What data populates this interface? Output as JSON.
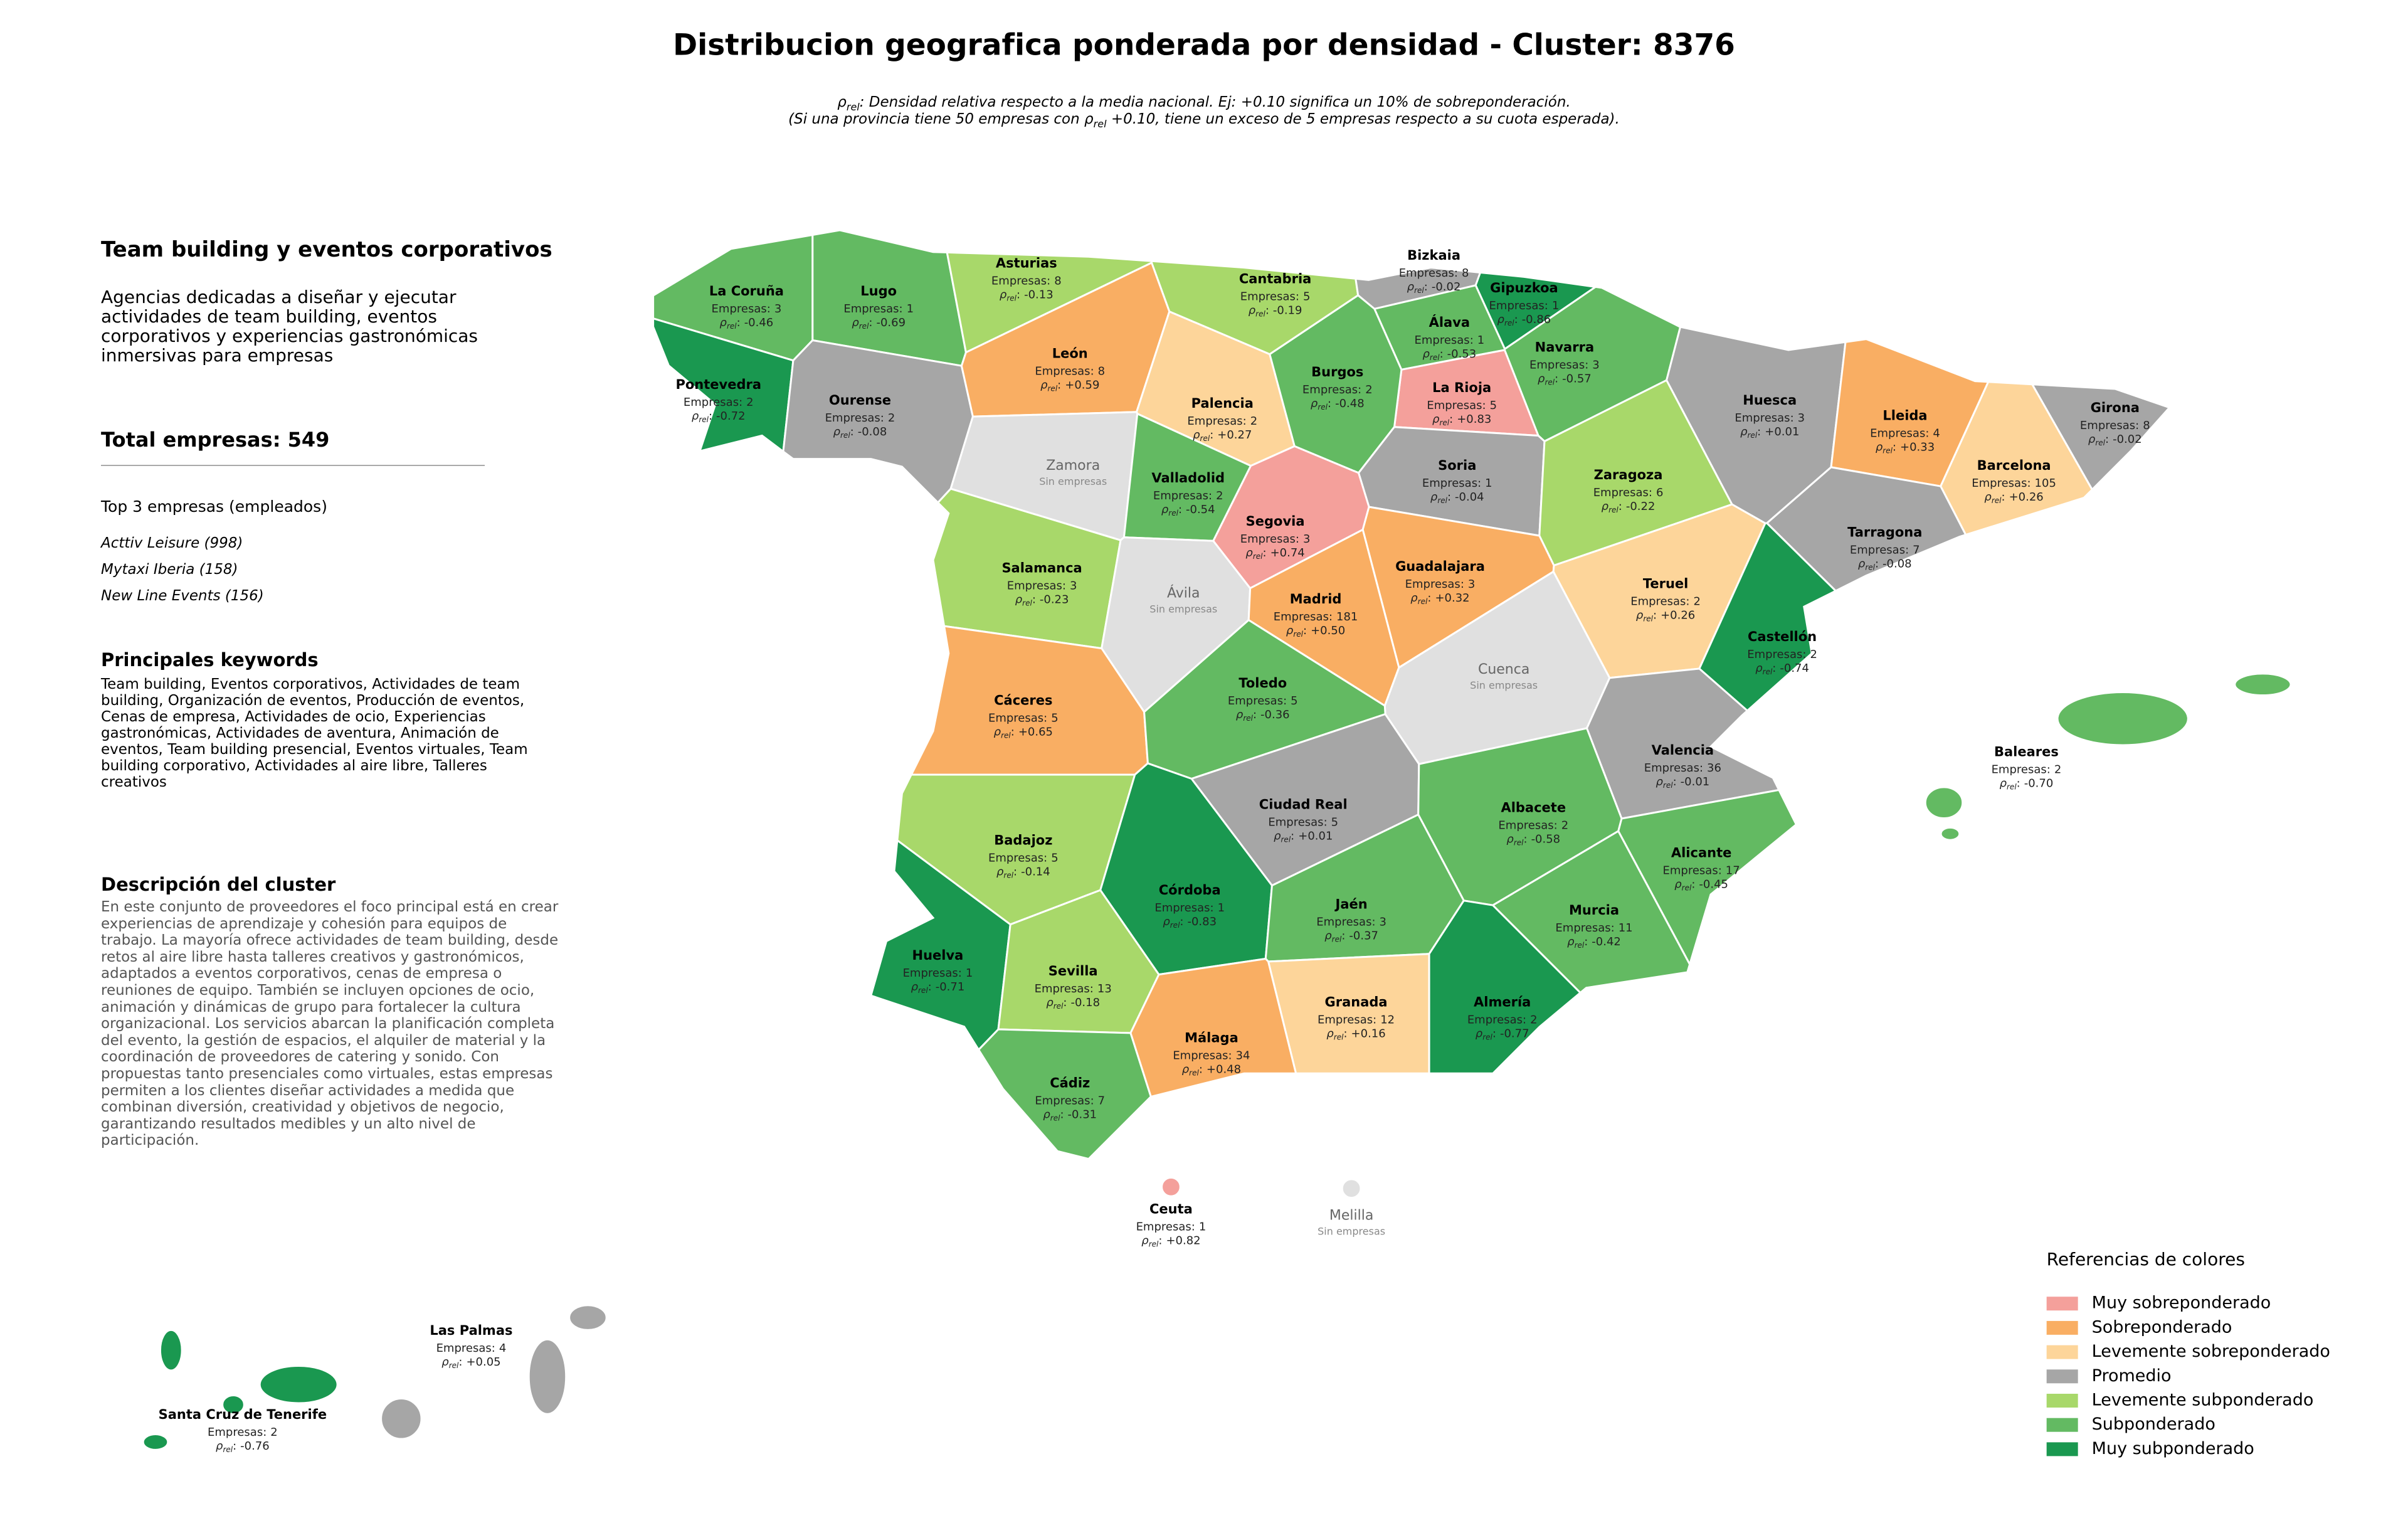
{
  "header": {
    "title": "Distribucion geografica ponderada por densidad - Cluster: 8376",
    "subtitle": [
      [
        {
          "sym": "ρ"
        },
        {
          "sub": "rel"
        },
        {
          "text": ": Densidad relativa respecto a la media nacional. Ej: +0.10 significa un 10% de sobreponderación."
        }
      ],
      [
        {
          "text": "(Si una provincia tiene 50 empresas con "
        },
        {
          "sym": "ρ"
        },
        {
          "sub": "rel"
        },
        {
          "text": " +0.10, tiene un exceso de 5 empresas respecto a su cuota esperada)."
        }
      ]
    ]
  },
  "panel": {
    "heading": "Team building y eventos corporativos",
    "description": "Agencias dedicadas a diseñar y ejecutar actividades de team building, eventos corporativos y experiencias gastronómicas inmersivas para empresas",
    "total_label": "Total empresas:",
    "total": 549,
    "top_heading": "Top 3 empresas (empleados)",
    "top": [
      "Acttiv Leisure (998)",
      "Mytaxi Iberia (158)",
      "New Line Events (156)"
    ],
    "keywords_heading": "Principales keywords",
    "keywords": "Team building, Eventos corporativos, Actividades de team building, Organización de eventos, Producción de eventos, Cenas de empresa, Actividades de ocio, Experiencias gastronómicas, Actividades de aventura, Animación de eventos, Team building presencial, Eventos virtuales, Team building corporativo, Actividades al aire libre, Talleres creativos",
    "cluster_heading": "Descripción del cluster",
    "cluster_text": "En este conjunto de proveedores el foco principal está en crear experiencias de aprendizaje y cohesión para equipos de trabajo. La mayoría ofrece actividades de team building, desde retos al aire libre hasta talleres creativos y gastronómicos, adaptados a eventos corporativos, cenas de empresa o reuniones de equipo. También se incluyen opciones de ocio, animación y dinámicas de grupo para fortalecer la cultura organizacional. Los servicios abarcan la planificación completa del evento, la gestión de espacios, el alquiler de material y la coordinación de proveedores de catering y sonido. Con propuestas tanto presenciales como virtuales, estas empresas permiten a los clientes diseñar actividades a medida que combinan diversión, creatividad y objetivos de negocio, garantizando resultados medibles y un alto nivel de participación."
  },
  "map": {
    "companies_label": "Empresas",
    "separator": ":",
    "rho_symbol": "ρ",
    "rho_subscript": "rel",
    "provinces": [
      {
        "name": "La Coruña",
        "companies": 3,
        "rho": -0.46,
        "rho_label": "-0.46",
        "color": "#63ba62"
      },
      {
        "name": "Lugo",
        "companies": 1,
        "rho": -0.69,
        "rho_label": "-0.69",
        "color": "#63ba62"
      },
      {
        "name": "Asturias",
        "companies": 8,
        "rho": -0.13,
        "rho_label": "-0.13",
        "color": "#a8d86a"
      },
      {
        "name": "Cantabria",
        "companies": 5,
        "rho": -0.19,
        "rho_label": "-0.19",
        "color": "#a8d86a"
      },
      {
        "name": "Bizkaia",
        "companies": 8,
        "rho": -0.02,
        "rho_label": "-0.02",
        "color": "#a6a6a6"
      },
      {
        "name": "Gipuzkoa",
        "companies": 1,
        "rho": -0.86,
        "rho_label": "-0.86",
        "color": "#1a9850"
      },
      {
        "name": "Álava",
        "companies": 1,
        "rho": -0.53,
        "rho_label": "-0.53",
        "color": "#63ba62"
      },
      {
        "name": "Navarra",
        "companies": 3,
        "rho": -0.57,
        "rho_label": "-0.57",
        "color": "#63ba62"
      },
      {
        "name": "La Rioja",
        "companies": 5,
        "rho": 0.83,
        "rho_label": "+0.83",
        "color": "#f4a09b"
      },
      {
        "name": "Pontevedra",
        "companies": 2,
        "rho": -0.72,
        "rho_label": "-0.72",
        "color": "#1a9850"
      },
      {
        "name": "Ourense",
        "companies": 2,
        "rho": -0.08,
        "rho_label": "-0.08",
        "color": "#a6a6a6"
      },
      {
        "name": "León",
        "companies": 8,
        "rho": 0.59,
        "rho_label": "+0.59",
        "color": "#f9ae63"
      },
      {
        "name": "Palencia",
        "companies": 2,
        "rho": 0.27,
        "rho_label": "+0.27",
        "color": "#fdd59a"
      },
      {
        "name": "Burgos",
        "companies": 2,
        "rho": -0.48,
        "rho_label": "-0.48",
        "color": "#63ba62"
      },
      {
        "name": "Huesca",
        "companies": 3,
        "rho": 0.01,
        "rho_label": "+0.01",
        "color": "#a6a6a6"
      },
      {
        "name": "Lleida",
        "companies": 4,
        "rho": 0.33,
        "rho_label": "+0.33",
        "color": "#f9ae63"
      },
      {
        "name": "Girona",
        "companies": 8,
        "rho": -0.02,
        "rho_label": "-0.02",
        "color": "#a6a6a6"
      },
      {
        "name": "Barcelona",
        "companies": 105,
        "rho": 0.26,
        "rho_label": "+0.26",
        "color": "#fdd59a"
      },
      {
        "name": "Zamora",
        "note": "Sin empresas",
        "color": "#e0e0e0"
      },
      {
        "name": "Valladolid",
        "companies": 2,
        "rho": -0.54,
        "rho_label": "-0.54",
        "color": "#63ba62"
      },
      {
        "name": "Soria",
        "companies": 1,
        "rho": -0.04,
        "rho_label": "-0.04",
        "color": "#a6a6a6"
      },
      {
        "name": "Zaragoza",
        "companies": 6,
        "rho": -0.22,
        "rho_label": "-0.22",
        "color": "#a8d86a"
      },
      {
        "name": "Segovia",
        "companies": 3,
        "rho": 0.74,
        "rho_label": "+0.74",
        "color": "#f4a09b"
      },
      {
        "name": "Tarragona",
        "companies": 7,
        "rho": -0.08,
        "rho_label": "-0.08",
        "color": "#a6a6a6"
      },
      {
        "name": "Salamanca",
        "companies": 3,
        "rho": -0.23,
        "rho_label": "-0.23",
        "color": "#a8d86a"
      },
      {
        "name": "Ávila",
        "note": "Sin empresas",
        "color": "#e0e0e0"
      },
      {
        "name": "Guadalajara",
        "companies": 3,
        "rho": 0.32,
        "rho_label": "+0.32",
        "color": "#f9ae63"
      },
      {
        "name": "Madrid",
        "companies": 181,
        "rho": 0.5,
        "rho_label": "+0.50",
        "color": "#f9ae63"
      },
      {
        "name": "Teruel",
        "companies": 2,
        "rho": 0.26,
        "rho_label": "+0.26",
        "color": "#fdd59a"
      },
      {
        "name": "Castellón",
        "companies": 2,
        "rho": -0.74,
        "rho_label": "-0.74",
        "color": "#1a9850"
      },
      {
        "name": "Cuenca",
        "note": "Sin empresas",
        "color": "#e0e0e0"
      },
      {
        "name": "Cáceres",
        "companies": 5,
        "rho": 0.65,
        "rho_label": "+0.65",
        "color": "#f9ae63"
      },
      {
        "name": "Toledo",
        "companies": 5,
        "rho": -0.36,
        "rho_label": "-0.36",
        "color": "#63ba62"
      },
      {
        "name": "Valencia",
        "companies": 36,
        "rho": -0.01,
        "rho_label": "-0.01",
        "color": "#a6a6a6"
      },
      {
        "name": "Ciudad Real",
        "companies": 5,
        "rho": 0.01,
        "rho_label": "+0.01",
        "color": "#a6a6a6"
      },
      {
        "name": "Albacete",
        "companies": 2,
        "rho": -0.58,
        "rho_label": "-0.58",
        "color": "#63ba62"
      },
      {
        "name": "Badajoz",
        "companies": 5,
        "rho": -0.14,
        "rho_label": "-0.14",
        "color": "#a8d86a"
      },
      {
        "name": "Alicante",
        "companies": 17,
        "rho": -0.45,
        "rho_label": "-0.45",
        "color": "#63ba62"
      },
      {
        "name": "Córdoba",
        "companies": 1,
        "rho": -0.83,
        "rho_label": "-0.83",
        "color": "#1a9850"
      },
      {
        "name": "Jaén",
        "companies": 3,
        "rho": -0.37,
        "rho_label": "-0.37",
        "color": "#63ba62"
      },
      {
        "name": "Murcia",
        "companies": 11,
        "rho": -0.42,
        "rho_label": "-0.42",
        "color": "#63ba62"
      },
      {
        "name": "Huelva",
        "companies": 1,
        "rho": -0.71,
        "rho_label": "-0.71",
        "color": "#1a9850"
      },
      {
        "name": "Sevilla",
        "companies": 13,
        "rho": -0.18,
        "rho_label": "-0.18",
        "color": "#a8d86a"
      },
      {
        "name": "Granada",
        "companies": 12,
        "rho": 0.16,
        "rho_label": "+0.16",
        "color": "#fdd59a"
      },
      {
        "name": "Almería",
        "companies": 2,
        "rho": -0.77,
        "rho_label": "-0.77",
        "color": "#1a9850"
      },
      {
        "name": "Málaga",
        "companies": 34,
        "rho": 0.48,
        "rho_label": "+0.48",
        "color": "#f9ae63"
      },
      {
        "name": "Cádiz",
        "companies": 7,
        "rho": -0.31,
        "rho_label": "-0.31",
        "color": "#63ba62"
      },
      {
        "name": "Baleares",
        "companies": 2,
        "rho": -0.7,
        "rho_label": "-0.70",
        "color": "#63ba62"
      },
      {
        "name": "Ceuta",
        "companies": 1,
        "rho": 0.82,
        "rho_label": "+0.82",
        "color": "#f4a09b"
      },
      {
        "name": "Melilla",
        "note": "Sin empresas",
        "color": "#e0e0e0"
      },
      {
        "name": "Las Palmas",
        "companies": 4,
        "rho": 0.05,
        "rho_label": "+0.05",
        "color": "#a6a6a6"
      },
      {
        "name": "Santa Cruz de Tenerife",
        "companies": 2,
        "rho": -0.76,
        "rho_label": "-0.76",
        "color": "#1a9850"
      }
    ]
  },
  "legend": {
    "title": "Referencias de colores",
    "items": [
      {
        "name": "Muy sobreponderado",
        "color": "#f4a09b"
      },
      {
        "name": "Sobreponderado",
        "color": "#f9ae63"
      },
      {
        "name": "Levemente sobreponderado",
        "color": "#fdd59a"
      },
      {
        "name": "Promedio",
        "color": "#a6a6a6"
      },
      {
        "name": "Levemente subponderado",
        "color": "#a8d86a"
      },
      {
        "name": "Subponderado",
        "color": "#63ba62"
      },
      {
        "name": "Muy subponderado",
        "color": "#1a9850"
      }
    ]
  }
}
